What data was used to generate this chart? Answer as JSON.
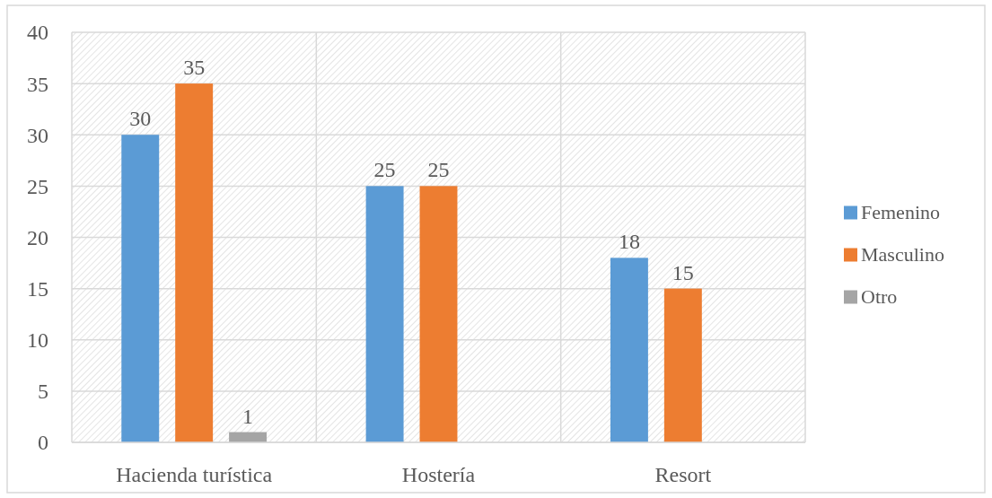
{
  "chart_data": {
    "type": "bar",
    "categories": [
      "Hacienda turística",
      "Hostería",
      "Resort"
    ],
    "series": [
      {
        "name": "Femenino",
        "color": "#5b9bd5",
        "values": [
          30,
          25,
          18
        ]
      },
      {
        "name": "Masculino",
        "color": "#ed7d31",
        "values": [
          35,
          25,
          15
        ]
      },
      {
        "name": "Otro",
        "color": "#a5a5a5",
        "values": [
          1,
          null,
          null
        ]
      }
    ],
    "ylim": [
      0,
      40
    ],
    "yticks": [
      0,
      5,
      10,
      15,
      20,
      25,
      30,
      35,
      40
    ],
    "grid": true,
    "legend": "right",
    "data_labels": true
  }
}
